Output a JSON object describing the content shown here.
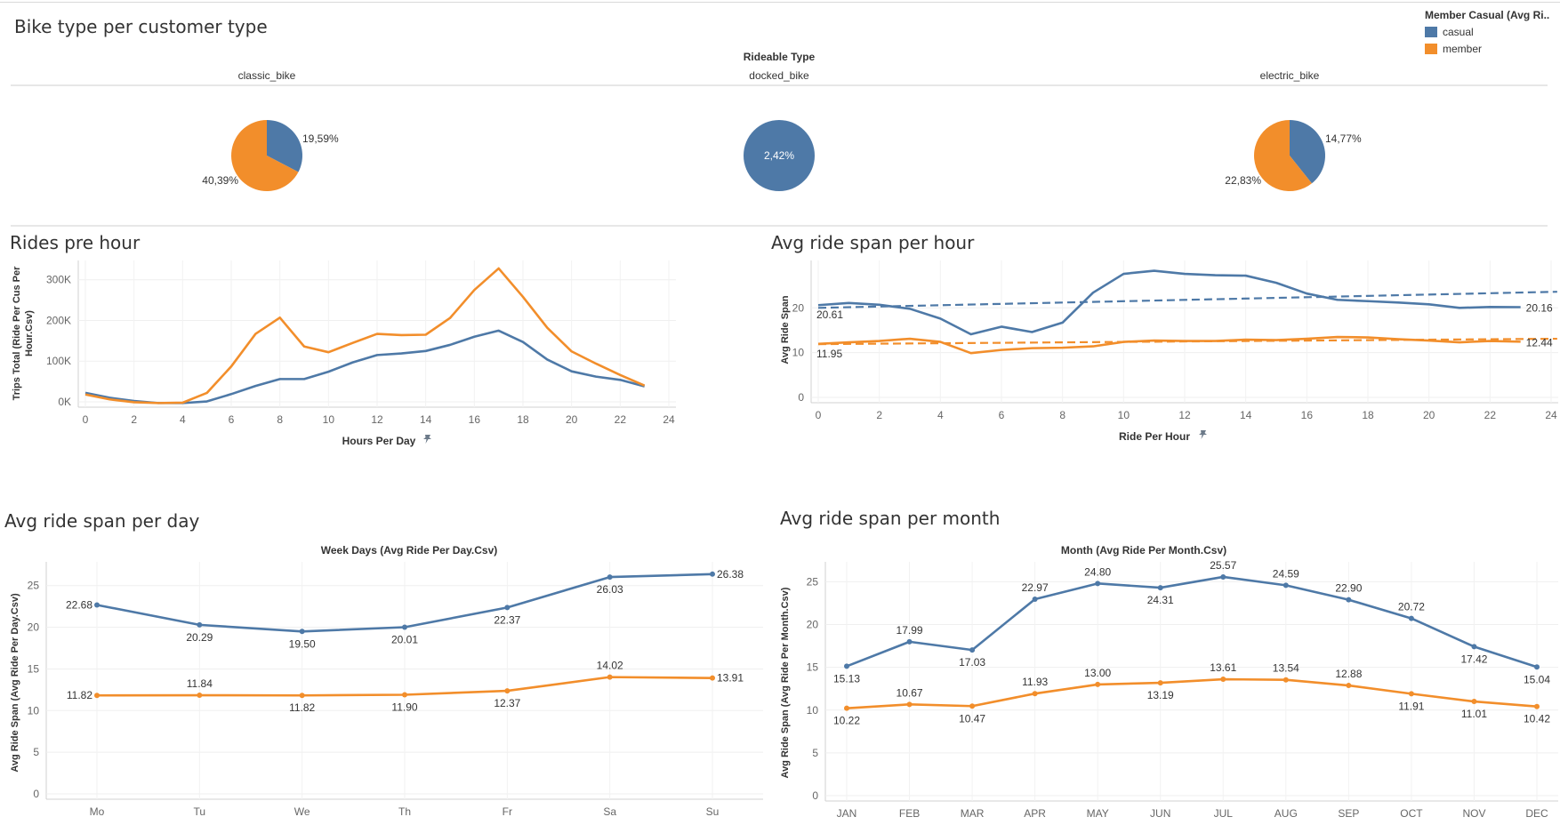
{
  "colors": {
    "casual": "#4e79a7",
    "member": "#f28e2b"
  },
  "legend": {
    "title": "Member Casual (Avg Ri..",
    "items": [
      {
        "label": "casual",
        "color": "#4e79a7"
      },
      {
        "label": "member",
        "color": "#f28e2b"
      }
    ]
  },
  "titles": {
    "bike_type": "Bike type per customer type",
    "rides_hour": "Rides pre hour",
    "avg_span_hour": "Avg ride span per hour",
    "avg_span_day": "Avg ride span per day",
    "avg_span_month": "Avg ride span per month"
  },
  "chart_data": [
    {
      "type": "pie",
      "title": "Bike type per customer type",
      "column_header": "Rideable Type",
      "pies": [
        {
          "category": "classic_bike",
          "slices": [
            {
              "series": "casual",
              "value": 19.59,
              "label": "19,59%"
            },
            {
              "series": "member",
              "value": 40.39,
              "label": "40,39%"
            }
          ]
        },
        {
          "category": "docked_bike",
          "slices": [
            {
              "series": "casual",
              "value": 2.42,
              "label": "2,42%"
            }
          ]
        },
        {
          "category": "electric_bike",
          "slices": [
            {
              "series": "casual",
              "value": 14.77,
              "label": "14,77%"
            },
            {
              "series": "member",
              "value": 22.83,
              "label": "22,83%"
            }
          ]
        }
      ]
    },
    {
      "type": "line",
      "title": "Rides pre hour",
      "xlabel": "Hours Per Day",
      "ylabel": "Trips Total (Ride Per Cus Per Hour.Csv)",
      "xlim": [
        0,
        24
      ],
      "ylim": [
        0,
        330000
      ],
      "xticks": [
        0,
        2,
        4,
        6,
        8,
        10,
        12,
        14,
        16,
        18,
        20,
        22,
        24
      ],
      "yticks": [
        0,
        100000,
        200000,
        300000
      ],
      "ytick_labels": [
        "0K",
        "100K",
        "200K",
        "300K"
      ],
      "x": [
        0,
        1,
        2,
        3,
        4,
        5,
        6,
        7,
        8,
        9,
        10,
        11,
        12,
        13,
        14,
        15,
        16,
        17,
        18,
        19,
        20,
        21,
        22,
        23
      ],
      "series": [
        {
          "name": "casual",
          "values": [
            22000,
            10000,
            2000,
            -3000,
            -3000,
            1000,
            19000,
            39000,
            56000,
            56000,
            74000,
            97000,
            115000,
            119000,
            125000,
            140000,
            160000,
            175000,
            147000,
            104000,
            75000,
            62000,
            54000,
            38000
          ]
        },
        {
          "name": "member",
          "values": [
            18000,
            6000,
            -1000,
            -3000,
            -2000,
            22000,
            87000,
            167000,
            207000,
            136000,
            122000,
            145000,
            167000,
            164000,
            165000,
            206000,
            275000,
            328000,
            258000,
            182000,
            124000,
            94000,
            66000,
            40000
          ]
        }
      ]
    },
    {
      "type": "line",
      "title": "Avg ride span per hour",
      "xlabel": "Ride Per Hour",
      "ylabel": "Avg Ride Span",
      "xlim": [
        0,
        24
      ],
      "ylim": [
        0,
        29
      ],
      "xticks": [
        0,
        2,
        4,
        6,
        8,
        10,
        12,
        14,
        16,
        18,
        20,
        22,
        24
      ],
      "yticks": [
        0,
        10,
        20
      ],
      "x": [
        0,
        1,
        2,
        3,
        4,
        5,
        6,
        7,
        8,
        9,
        10,
        11,
        12,
        13,
        14,
        15,
        16,
        17,
        18,
        19,
        20,
        21,
        22,
        23
      ],
      "series": [
        {
          "name": "casual",
          "values": [
            20.61,
            21.1,
            20.7,
            19.8,
            17.6,
            14.1,
            15.8,
            14.6,
            16.7,
            23.4,
            27.6,
            28.3,
            27.6,
            27.3,
            27.2,
            25.6,
            23.2,
            21.8,
            21.5,
            21.2,
            20.8,
            20.0,
            20.2,
            20.16
          ]
        },
        {
          "name": "member",
          "values": [
            11.95,
            12.3,
            12.6,
            13.1,
            12.4,
            9.9,
            10.6,
            11.0,
            11.1,
            11.4,
            12.4,
            12.7,
            12.6,
            12.6,
            12.9,
            12.8,
            13.1,
            13.5,
            13.4,
            13.0,
            12.7,
            12.3,
            12.6,
            12.44
          ]
        }
      ],
      "trend_lines": [
        {
          "series": "casual",
          "from": [
            0,
            20.0
          ],
          "to": [
            24.2,
            23.6
          ]
        },
        {
          "series": "member",
          "from": [
            0,
            11.9
          ],
          "to": [
            24.2,
            13.1
          ]
        }
      ],
      "point_labels": [
        {
          "series": "casual",
          "x": 0,
          "text": "20.61"
        },
        {
          "series": "member",
          "x": 0,
          "text": "11.95"
        },
        {
          "series": "casual",
          "x": 23,
          "text": "20.16"
        },
        {
          "series": "member",
          "x": 23,
          "text": "12.44"
        }
      ]
    },
    {
      "type": "line",
      "title": "Avg ride span per day",
      "subtitle": "Week Days (Avg Ride Per Day.Csv)",
      "ylabel": "Avg Ride Span (Avg Ride Per Day.Csv)",
      "ylim": [
        0,
        27
      ],
      "yticks": [
        0,
        5,
        10,
        15,
        20,
        25
      ],
      "categories": [
        "Mo",
        "Tu",
        "We",
        "Th",
        "Fr",
        "Sa",
        "Su"
      ],
      "series": [
        {
          "name": "casual",
          "values": [
            22.68,
            20.29,
            19.5,
            20.01,
            22.37,
            26.03,
            26.38
          ],
          "labels": [
            "22.68",
            "20.29",
            "19.50",
            "20.01",
            "22.37",
            "26.03",
            "26.38"
          ]
        },
        {
          "name": "member",
          "values": [
            11.82,
            11.84,
            11.82,
            11.9,
            12.37,
            14.02,
            13.91
          ],
          "labels": [
            "11.82",
            "11.84",
            "11.82",
            "11.90",
            "12.37",
            "14.02",
            "13.91"
          ]
        }
      ]
    },
    {
      "type": "line",
      "title": "Avg ride span per month",
      "subtitle": "Month (Avg Ride Per Month.Csv)",
      "ylabel": "Avg Ride Span (Avg Ride Per Month.Csv)",
      "ylim": [
        0,
        26.5
      ],
      "yticks": [
        0,
        5,
        10,
        15,
        20,
        25
      ],
      "categories": [
        "JAN",
        "FEB",
        "MAR",
        "APR",
        "MAY",
        "JUN",
        "JUL",
        "AUG",
        "SEP",
        "OCT",
        "NOV",
        "DEC"
      ],
      "series": [
        {
          "name": "casual",
          "values": [
            15.13,
            17.99,
            17.03,
            22.97,
            24.8,
            24.31,
            25.57,
            24.59,
            22.9,
            20.72,
            17.42,
            15.04
          ],
          "labels": [
            "15.13",
            "17.99",
            "17.03",
            "22.97",
            "24.80",
            "24.31",
            "25.57",
            "24.59",
            "22.90",
            "20.72",
            "17.42",
            "15.04"
          ]
        },
        {
          "name": "member",
          "values": [
            10.22,
            10.67,
            10.47,
            11.93,
            13.0,
            13.19,
            13.61,
            13.54,
            12.88,
            11.91,
            11.01,
            10.42
          ],
          "labels": [
            "10.22",
            "10.67",
            "10.47",
            "11.93",
            "13.00",
            "13.19",
            "13.61",
            "13.54",
            "12.88",
            "11.91",
            "11.01",
            "10.42"
          ]
        }
      ]
    }
  ]
}
